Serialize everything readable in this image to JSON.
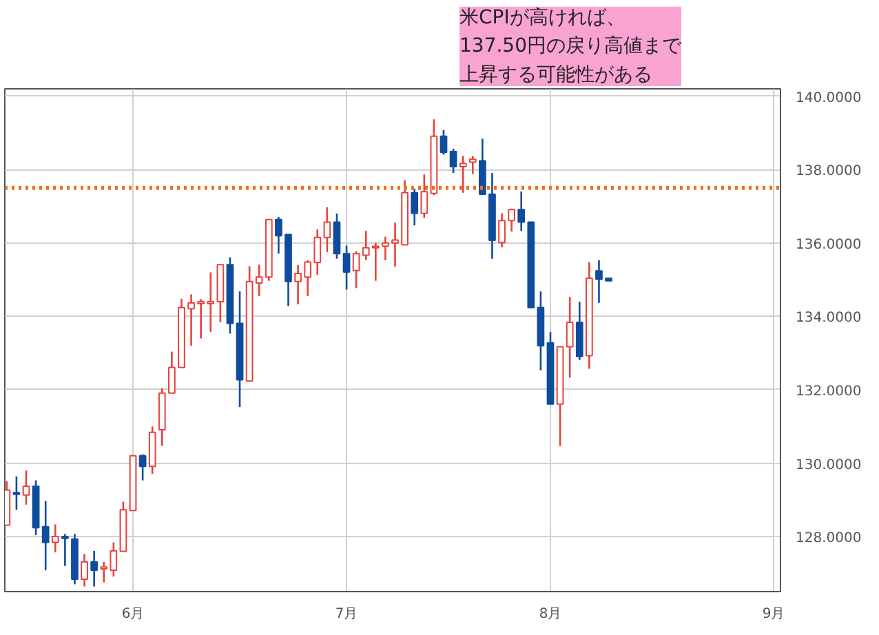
{
  "chart_data": {
    "type": "candlestick",
    "categories": [
      null,
      null,
      null,
      null,
      null,
      null,
      null,
      null,
      null,
      null,
      null,
      null,
      null,
      "6月",
      null,
      null,
      null,
      null,
      null,
      null,
      null,
      null,
      null,
      null,
      null,
      null,
      null,
      null,
      null,
      null,
      null,
      null,
      null,
      null,
      null,
      "7月",
      null,
      null,
      null,
      null,
      null,
      null,
      null,
      null,
      null,
      null,
      null,
      null,
      null,
      null,
      null,
      null,
      null,
      null,
      null,
      null,
      "8月",
      null,
      null,
      null,
      null,
      null,
      null,
      null,
      null,
      null,
      null,
      null,
      null,
      null,
      null,
      null,
      null,
      null,
      null,
      null,
      null,
      null,
      null,
      "9月"
    ],
    "ohlc": [
      [
        128.31,
        129.51,
        128.31,
        129.27
      ],
      [
        129.2,
        129.64,
        128.73,
        129.15
      ],
      [
        129.13,
        129.8,
        128.87,
        129.37
      ],
      [
        129.37,
        129.53,
        128.04,
        128.24
      ],
      [
        128.27,
        128.97,
        127.08,
        127.84
      ],
      [
        127.84,
        128.33,
        127.57,
        128.0
      ],
      [
        128.0,
        128.07,
        127.2,
        127.95
      ],
      [
        127.93,
        128.07,
        126.7,
        126.84
      ],
      [
        126.84,
        127.53,
        126.64,
        127.31
      ],
      [
        127.31,
        127.61,
        126.64,
        127.08
      ],
      [
        127.12,
        127.31,
        126.75,
        127.17
      ],
      [
        127.08,
        127.84,
        126.91,
        127.61
      ],
      [
        127.6,
        128.95,
        127.6,
        128.73
      ],
      [
        128.71,
        130.2,
        128.71,
        130.2
      ],
      [
        130.2,
        130.24,
        129.53,
        129.91
      ],
      [
        129.91,
        131.0,
        129.71,
        130.84
      ],
      [
        130.91,
        132.04,
        130.47,
        131.91
      ],
      [
        131.91,
        133.04,
        131.91,
        132.61
      ],
      [
        132.61,
        134.48,
        132.61,
        134.24
      ],
      [
        134.21,
        134.6,
        133.2,
        134.37
      ],
      [
        134.35,
        134.47,
        133.4,
        134.4
      ],
      [
        134.35,
        135.2,
        133.57,
        134.4
      ],
      [
        134.4,
        135.41,
        133.84,
        135.41
      ],
      [
        135.41,
        135.61,
        133.53,
        133.81
      ],
      [
        133.81,
        134.68,
        131.53,
        132.27
      ],
      [
        132.24,
        135.37,
        132.24,
        134.95
      ],
      [
        134.91,
        135.41,
        134.55,
        135.07
      ],
      [
        135.07,
        136.64,
        134.97,
        136.64
      ],
      [
        136.64,
        136.71,
        135.71,
        136.2
      ],
      [
        136.23,
        136.23,
        134.28,
        134.95
      ],
      [
        134.95,
        135.4,
        134.33,
        135.17
      ],
      [
        135.07,
        135.53,
        134.55,
        135.48
      ],
      [
        135.47,
        136.37,
        135.13,
        136.15
      ],
      [
        136.15,
        136.97,
        135.75,
        136.57
      ],
      [
        136.57,
        136.8,
        135.57,
        135.71
      ],
      [
        135.71,
        135.93,
        134.73,
        135.21
      ],
      [
        135.25,
        135.77,
        134.77,
        135.71
      ],
      [
        135.67,
        136.33,
        135.53,
        135.87
      ],
      [
        135.87,
        136.01,
        134.97,
        135.91
      ],
      [
        135.91,
        136.17,
        135.53,
        136.0
      ],
      [
        136.0,
        136.55,
        135.35,
        136.08
      ],
      [
        135.95,
        137.71,
        135.95,
        137.37
      ],
      [
        137.37,
        137.48,
        136.48,
        136.81
      ],
      [
        136.81,
        137.87,
        136.68,
        137.4
      ],
      [
        137.35,
        139.37,
        137.31,
        138.91
      ],
      [
        138.91,
        139.08,
        138.41,
        138.47
      ],
      [
        138.49,
        138.57,
        137.91,
        138.08
      ],
      [
        138.08,
        138.37,
        137.37,
        138.17
      ],
      [
        138.2,
        138.37,
        137.88,
        138.28
      ],
      [
        138.24,
        138.84,
        137.33,
        137.33
      ],
      [
        137.33,
        137.91,
        135.57,
        136.07
      ],
      [
        136.01,
        136.81,
        135.88,
        136.61
      ],
      [
        136.61,
        136.91,
        136.31,
        136.91
      ],
      [
        136.91,
        137.4,
        136.33,
        136.57
      ],
      [
        136.57,
        136.57,
        134.24,
        134.24
      ],
      [
        134.24,
        134.68,
        132.53,
        133.2
      ],
      [
        133.28,
        133.57,
        131.61,
        131.61
      ],
      [
        131.61,
        133.17,
        130.47,
        133.17
      ],
      [
        133.17,
        134.53,
        132.33,
        133.84
      ],
      [
        133.84,
        134.4,
        132.81,
        132.91
      ],
      [
        132.93,
        135.48,
        132.57,
        135.04
      ],
      [
        135.24,
        135.53,
        134.37,
        135.01
      ],
      [
        135.04,
        135.04,
        134.97,
        134.97
      ],
      null,
      null,
      null,
      null,
      null,
      null,
      null,
      null,
      null,
      null,
      null,
      null,
      null,
      null,
      null,
      null,
      null
    ],
    "colors": [
      "#e8413c",
      "#0f4c9e",
      "#e8413c",
      "#0f4c9e",
      "#0f4c9e",
      "#e8413c",
      "#0f4c9e",
      "#0f4c9e",
      "#e8413c",
      "#0f4c9e",
      "#e8413c",
      "#e8413c",
      "#e8413c",
      "#e8413c",
      "#0f4c9e",
      "#e8413c",
      "#e8413c",
      "#e8413c",
      "#e8413c",
      "#e8413c",
      "#e8413c",
      "#e8413c",
      "#e8413c",
      "#0f4c9e",
      "#0f4c9e",
      "#e8413c",
      "#e8413c",
      "#e8413c",
      "#0f4c9e",
      "#0f4c9e",
      "#e8413c",
      "#e8413c",
      "#e8413c",
      "#e8413c",
      "#0f4c9e",
      "#0f4c9e",
      "#e8413c",
      "#e8413c",
      "#e8413c",
      "#e8413c",
      "#e8413c",
      "#e8413c",
      "#0f4c9e",
      "#e8413c",
      "#e8413c",
      "#0f4c9e",
      "#0f4c9e",
      "#e8413c",
      "#e8413c",
      "#0f4c9e",
      "#0f4c9e",
      "#e8413c",
      "#e8413c",
      "#0f4c9e",
      "#0f4c9e",
      "#0f4c9e",
      "#0f4c9e",
      "#e8413c",
      "#e8413c",
      "#0f4c9e",
      "#e8413c",
      "#0f4c9e",
      "#0f4c9e",
      null,
      null,
      null,
      null,
      null,
      null,
      null,
      null,
      null,
      null,
      null,
      null,
      null,
      null,
      null,
      null,
      null
    ],
    "ylim": [
      126.5,
      140.2
    ],
    "yticks": [
      {
        "value": 128,
        "label": "128.0000"
      },
      {
        "value": 130,
        "label": "130.0000"
      },
      {
        "value": 132,
        "label": "132.0000"
      },
      {
        "value": 134,
        "label": "134.0000"
      },
      {
        "value": 136,
        "label": "136.0000"
      },
      {
        "value": 138,
        "label": "138.0000"
      },
      {
        "value": 140,
        "label": "140.0000"
      }
    ],
    "grid": true,
    "ref_lines": [
      {
        "axis": "y",
        "value": 137.5,
        "color": "#f07020",
        "line_style": "dotted"
      }
    ],
    "annotations": [
      "米CPIが高ければ、137.50円の戻り高値まで上昇する可能性がある"
    ]
  }
}
